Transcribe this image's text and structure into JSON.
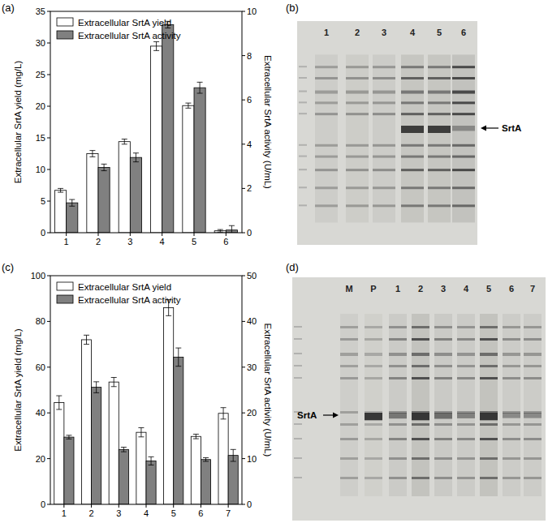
{
  "chart_data": [
    {
      "type": "bar",
      "title": "(a)",
      "categories": [
        "1",
        "2",
        "3",
        "4",
        "5",
        "6"
      ],
      "y_label": "Extracellular SrtA yield (mg/L)",
      "y2_label": "Extracellular SrtA activity (U/mL)",
      "ylim": [
        0,
        35
      ],
      "yticks": [
        0,
        5,
        10,
        15,
        20,
        25,
        30,
        35
      ],
      "y2lim": [
        0,
        10
      ],
      "y2ticks": [
        0,
        2,
        4,
        6,
        8,
        10
      ],
      "legend": "upper left",
      "grid": false,
      "series": [
        {
          "name": "Extracellular SrtA yield",
          "color": "#ffffff",
          "values": [
            6.7,
            12.5,
            14.4,
            29.5,
            20.1,
            0.3
          ],
          "errors": [
            0.3,
            0.5,
            0.4,
            0.7,
            0.4,
            0.2
          ]
        },
        {
          "name": "Extracellular SrtA activity",
          "color": "#808080",
          "axis": "y2",
          "values": [
            1.35,
            2.95,
            3.4,
            9.4,
            6.55,
            0.12
          ],
          "errors": [
            0.15,
            0.15,
            0.2,
            0.15,
            0.25,
            0.2
          ]
        }
      ]
    },
    {
      "type": "bar",
      "title": "(c)",
      "categories": [
        "1",
        "2",
        "3",
        "4",
        "5",
        "6",
        "7"
      ],
      "y_label": "Extracellular SrtA yield (mg/L)",
      "y2_label": "Extracellular SrtA activity (U/mL)",
      "ylim": [
        0,
        100
      ],
      "yticks": [
        0,
        20,
        40,
        60,
        80,
        100
      ],
      "y2lim": [
        0,
        50
      ],
      "y2ticks": [
        0,
        10,
        20,
        30,
        40,
        50
      ],
      "legend": "upper left",
      "grid": false,
      "series": [
        {
          "name": "Extracellular SrtA yield",
          "color": "#ffffff",
          "values": [
            44.5,
            72,
            53.5,
            31.5,
            86,
            29.7,
            39.8
          ],
          "errors": [
            3,
            2,
            2,
            2,
            3.5,
            1,
            2.5
          ]
        },
        {
          "name": "Extracellular SrtA activity",
          "color": "#808080",
          "axis": "y2",
          "values": [
            14.7,
            25.6,
            12.0,
            9.5,
            32.2,
            9.8,
            10.7
          ],
          "errors": [
            0.4,
            1.2,
            0.5,
            0.9,
            2,
            0.4,
            1.3
          ]
        }
      ]
    }
  ],
  "gels": [
    {
      "panel": "(b)",
      "lanes": [
        "1",
        "2",
        "3",
        "4",
        "5",
        "6"
      ],
      "band_label": "SrtA"
    },
    {
      "panel": "(d)",
      "lanes": [
        "M",
        "P",
        "1",
        "2",
        "3",
        "4",
        "5",
        "6",
        "7"
      ],
      "band_label": "SrtA"
    }
  ]
}
